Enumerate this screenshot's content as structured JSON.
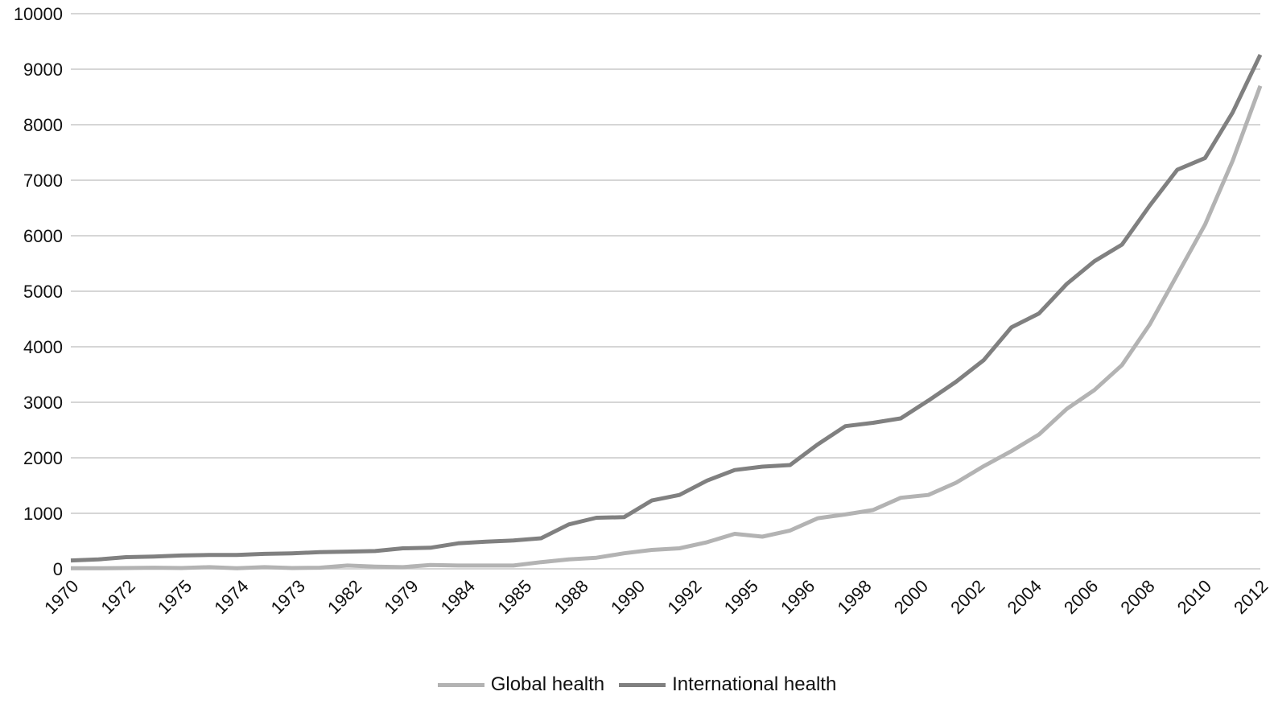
{
  "chart_data": {
    "type": "line",
    "title": "",
    "xlabel": "",
    "ylabel": "",
    "ylim": [
      0,
      10000
    ],
    "y_ticks": [
      "0",
      "1000",
      "2000",
      "3000",
      "4000",
      "5000",
      "6000",
      "7000",
      "8000",
      "9000",
      "10000"
    ],
    "x_tick_labels": [
      "1970",
      "1972",
      "1975",
      "1974",
      "1973",
      "1982",
      "1979",
      "1984",
      "1985",
      "1988",
      "1990",
      "1992",
      "1995",
      "1996",
      "1998",
      "2000",
      "2002",
      "2004",
      "2006",
      "2008",
      "2010",
      "2012"
    ],
    "grid": true,
    "legend_position": "bottom",
    "series": [
      {
        "name": "Global health",
        "color": "#b3b3b3",
        "values": [
          10,
          10,
          15,
          20,
          15,
          30,
          10,
          30,
          15,
          20,
          60,
          40,
          30,
          70,
          60,
          60,
          60,
          120,
          170,
          200,
          280,
          340,
          370,
          480,
          630,
          580,
          690,
          910,
          980,
          1060,
          1280,
          1330,
          1550,
          1850,
          2120,
          2420,
          2880,
          3220,
          3670,
          4400,
          5300,
          6200,
          7350,
          8700
        ]
      },
      {
        "name": "International health",
        "color": "#808080",
        "values": [
          150,
          170,
          210,
          220,
          240,
          250,
          250,
          270,
          280,
          300,
          310,
          320,
          370,
          380,
          460,
          490,
          510,
          550,
          800,
          920,
          930,
          1230,
          1330,
          1590,
          1780,
          1840,
          1870,
          2240,
          2570,
          2630,
          2710,
          3030,
          3370,
          3760,
          4350,
          4600,
          5130,
          5540,
          5840,
          6540,
          7190,
          7400,
          8220,
          9260
        ]
      }
    ]
  }
}
